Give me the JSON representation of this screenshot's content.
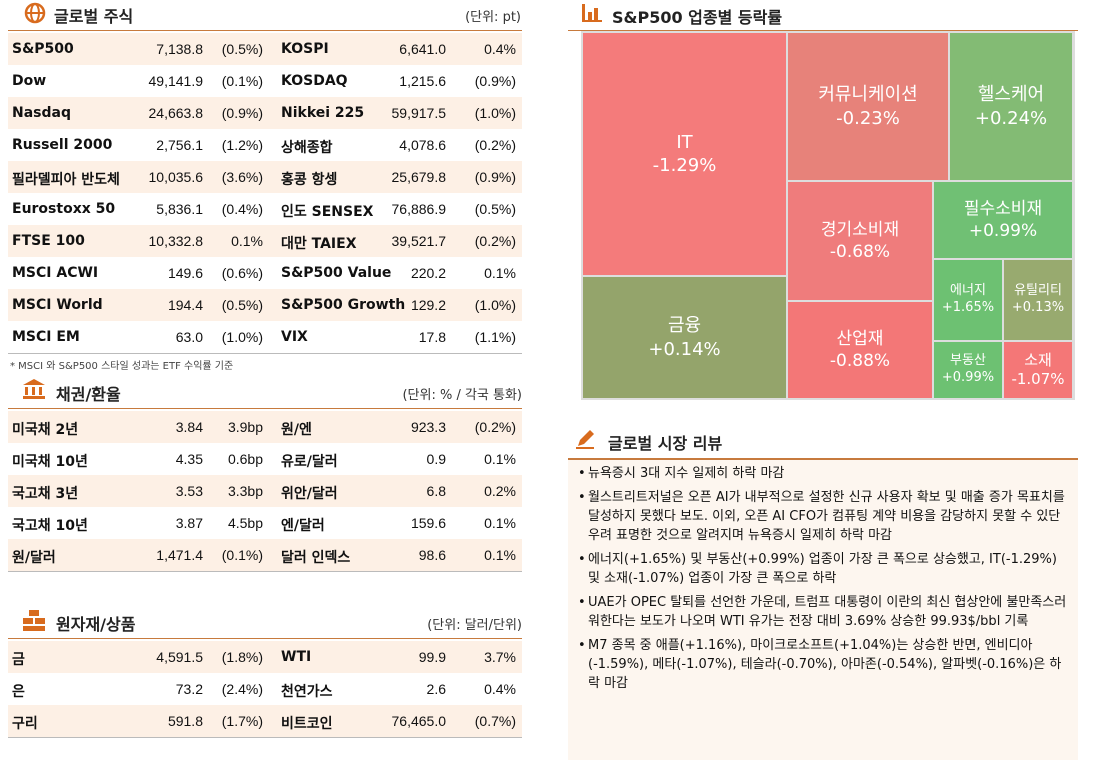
{
  "stocks": {
    "title": "글로벌 주식",
    "unit": "(단위: pt)",
    "rows": [
      [
        "S&P500",
        "7,138.8",
        "(0.5%)",
        "KOSPI",
        "6,641.0",
        "0.4%"
      ],
      [
        "Dow",
        "49,141.9",
        "(0.1%)",
        "KOSDAQ",
        "1,215.6",
        "(0.9%)"
      ],
      [
        "Nasdaq",
        "24,663.8",
        "(0.9%)",
        "Nikkei 225",
        "59,917.5",
        "(1.0%)"
      ],
      [
        "Russell 2000",
        "2,756.1",
        "(1.2%)",
        "상해종합",
        "4,078.6",
        "(0.2%)"
      ],
      [
        "필라델피아 반도체",
        "10,035.6",
        "(3.6%)",
        "홍콩 항셍",
        "25,679.8",
        "(0.9%)"
      ],
      [
        "Eurostoxx 50",
        "5,836.1",
        "(0.4%)",
        "인도 SENSEX",
        "76,886.9",
        "(0.5%)"
      ],
      [
        "FTSE 100",
        "10,332.8",
        "0.1%",
        "대만 TAIEX",
        "39,521.7",
        "(0.2%)"
      ],
      [
        "MSCI ACWI",
        "149.6",
        "(0.6%)",
        "S&P500 Value",
        "220.2",
        "0.1%"
      ],
      [
        "MSCI World",
        "194.4",
        "(0.5%)",
        "S&P500 Growth",
        "129.2",
        "(1.0%)"
      ],
      [
        "MSCI EM",
        "63.0",
        "(1.0%)",
        "VIX",
        "17.8",
        "(1.1%)"
      ]
    ],
    "note": "* MSCI 와 S&P500 스타일 성과는 ETF 수익률 기준"
  },
  "bonds": {
    "title": "채권/환율",
    "unit": "(단위: % / 각국 통화)",
    "rows": [
      [
        "미국채 2년",
        "3.84",
        "3.9bp",
        "원/엔",
        "923.3",
        "(0.2%)"
      ],
      [
        "미국채 10년",
        "4.35",
        "0.6bp",
        "유로/달러",
        "0.9",
        "0.1%"
      ],
      [
        "국고채 3년",
        "3.53",
        "3.3bp",
        "위안/달러",
        "6.8",
        "0.2%"
      ],
      [
        "국고채 10년",
        "3.87",
        "4.5bp",
        "엔/달러",
        "159.6",
        "0.1%"
      ],
      [
        "원/달러",
        "1,471.4",
        "(0.1%)",
        "달러 인덱스",
        "98.6",
        "0.1%"
      ]
    ]
  },
  "commodities": {
    "title": "원자재/상품",
    "unit": "(단위: 달러/단위)",
    "rows": [
      [
        "금",
        "4,591.5",
        "(1.8%)",
        "WTI",
        "99.9",
        "3.7%"
      ],
      [
        "은",
        "73.2",
        "(2.4%)",
        "천연가스",
        "2.6",
        "0.4%"
      ],
      [
        "구리",
        "591.8",
        "(1.7%)",
        "비트코인",
        "76,465.0",
        "(0.7%)"
      ]
    ]
  },
  "sector": {
    "title": "S&P500 업종별 등락률",
    "tiles": [
      {
        "name": "IT",
        "value": "-1.29%"
      },
      {
        "name": "금융",
        "value": "+0.14%"
      },
      {
        "name": "커뮤니케이션",
        "value": "-0.23%"
      },
      {
        "name": "헬스케어",
        "value": "+0.24%"
      },
      {
        "name": "경기소비재",
        "value": "-0.68%"
      },
      {
        "name": "필수소비재",
        "value": "+0.99%"
      },
      {
        "name": "에너지",
        "value": "+1.65%"
      },
      {
        "name": "유틸리티",
        "value": "+0.13%"
      },
      {
        "name": "산업재",
        "value": "-0.88%"
      },
      {
        "name": "부동산",
        "value": "+0.99%"
      },
      {
        "name": "소재",
        "value": "-1.07%"
      }
    ]
  },
  "review": {
    "title": "글로벌 시장 리뷰",
    "items": [
      "뉴욕증시 3대 지수 일제히 하락 마감",
      "월스트리트저널은 오픈 AI가 내부적으로 설정한 신규 사용자 확보 및 매출 증가 목표치를 달성하지 못했다 보도. 이외, 오픈 AI CFO가 컴퓨팅 계약 비용을 감당하지 못할 수 있단 우려 표명한 것으로 알려지며 뉴욕증시 일제히 하락 마감",
      "에너지(+1.65%) 및 부동산(+0.99%) 업종이 가장 큰 폭으로 상승했고, IT(-1.29%) 및 소재(-1.07%) 업종이 가장 큰 폭으로 하락",
      "UAE가 OPEC 탈퇴를 선언한 가운데, 트럼프 대통령이 이란의 최신 협상안에 불만족스러워한다는 보도가 나오며 WTI 유가는 전장 대비 3.69% 상승한 99.93$/bbl 기록",
      "M7 종목 중 애플(+1.16%), 마이크로소프트(+1.04%)는 상승한 반면, 엔비디아(-1.59%), 메타(-1.07%), 테슬라(-0.70%), 아마존(-0.54%), 알파벳(-0.16%)은 하락 마감"
    ]
  }
}
